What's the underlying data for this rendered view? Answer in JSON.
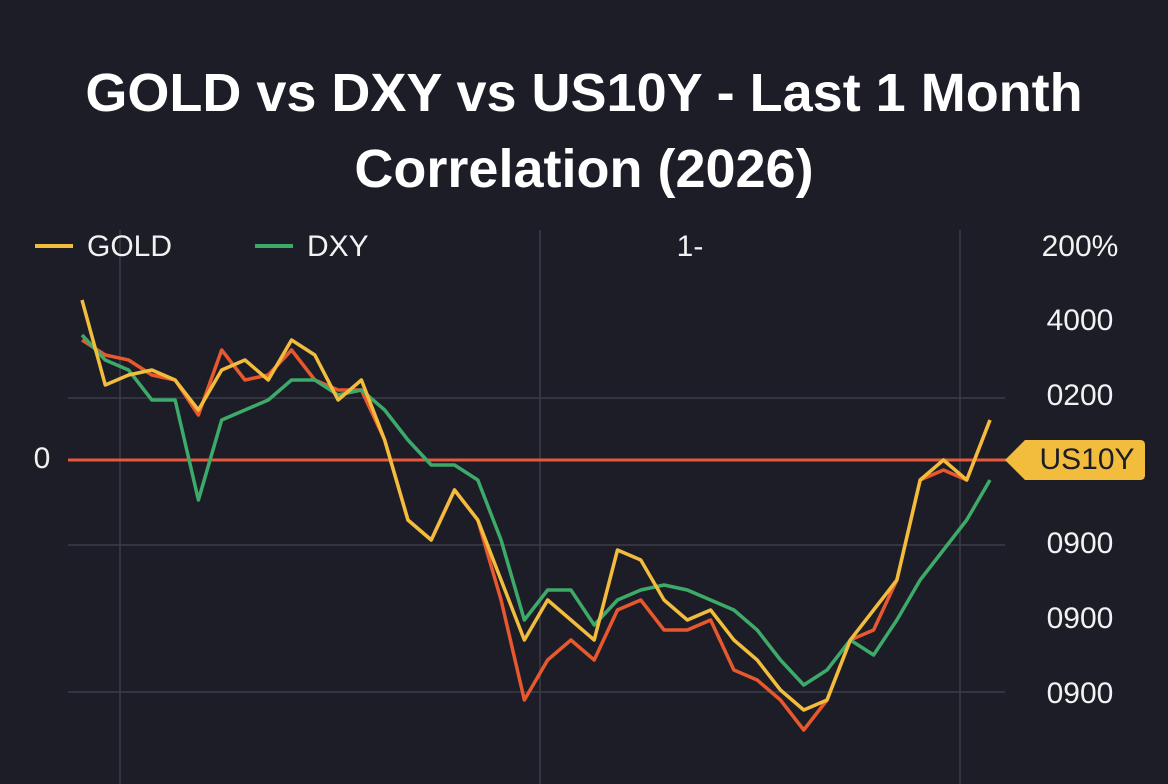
{
  "chart_data": {
    "type": "line",
    "title": "GOLD vs DXY vs US10Y - Last 1 Month Correlation (2026)",
    "annotation": "1-",
    "right_labels": [
      "200%",
      "4000",
      "0200",
      "0900",
      "0900",
      "0900"
    ],
    "categories": [
      null,
      null,
      null,
      null,
      null,
      null,
      null,
      null,
      null,
      null,
      null,
      null,
      null,
      null,
      null,
      null,
      null,
      null,
      null,
      null,
      null,
      null,
      null,
      null,
      null,
      null,
      null,
      null,
      null,
      null,
      null,
      null,
      null,
      null,
      null,
      null,
      null,
      null,
      null,
      null
    ],
    "series": [
      {
        "name": "GOLD",
        "color": "#f2bc3c",
        "values": [
          160,
          75,
          85,
          90,
          80,
          50,
          90,
          100,
          80,
          120,
          105,
          60,
          80,
          20,
          -60,
          -80,
          -30,
          -60,
          -120,
          -180,
          -140,
          -160,
          -180,
          -90,
          -100,
          -140,
          -160,
          -150,
          -180,
          -200,
          -230,
          -250,
          -240,
          -180,
          -150,
          -120,
          -20,
          0,
          -20,
          40
        ]
      },
      {
        "name": "DXY",
        "color": "#3daa6a",
        "values": [
          125,
          100,
          90,
          60,
          60,
          -40,
          40,
          50,
          60,
          80,
          80,
          65,
          70,
          50,
          20,
          -5,
          -5,
          -20,
          -80,
          -160,
          -130,
          -130,
          -165,
          -140,
          -130,
          -125,
          -130,
          -140,
          -150,
          -170,
          -200,
          -225,
          -210,
          -180,
          -195,
          -160,
          -120,
          -90,
          -60,
          -20
        ]
      },
      {
        "name": "US10Y",
        "color": "#e8582e",
        "values": [
          120,
          105,
          100,
          85,
          80,
          45,
          110,
          80,
          85,
          110,
          80,
          70,
          70,
          20,
          -60,
          -80,
          -30,
          -60,
          -140,
          -240,
          -200,
          -180,
          -200,
          -150,
          -140,
          -170,
          -170,
          -160,
          -210,
          -220,
          -240,
          -270,
          -240,
          -180,
          -170,
          -120,
          -20,
          -10,
          -20,
          40
        ]
      }
    ],
    "ylim": [
      -320,
      230
    ],
    "yticks": [
      0
    ],
    "hline": 0,
    "hline_color": "#e8583a",
    "legend": "top-left"
  }
}
